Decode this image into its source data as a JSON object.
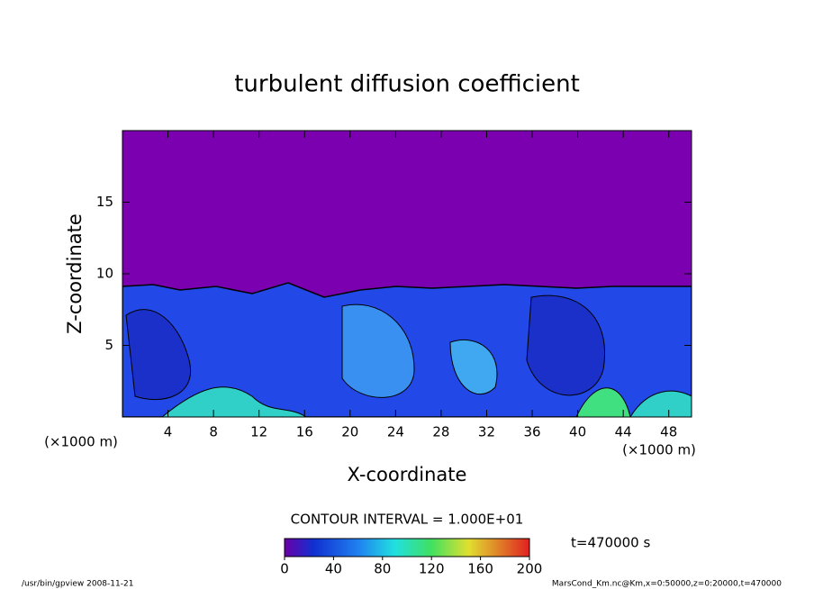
{
  "chart_data": {
    "type": "contour",
    "title": "turbulent diffusion coefficient",
    "x_label": "X-coordinate",
    "y_label": "Z-coordinate",
    "x_unit": "(×1000 m)",
    "y_unit": "(×1000 m)",
    "xlim": [
      0,
      50
    ],
    "xticks": [
      4,
      8,
      12,
      16,
      20,
      24,
      28,
      32,
      36,
      40,
      44,
      48
    ],
    "ylim": [
      0,
      20
    ],
    "yticks": [
      5,
      10,
      15
    ],
    "contour_interval": "CONTOUR INTERVAL = 1.000E+01",
    "colorbar_lim": [
      0,
      200
    ],
    "colorbar_ticks": [
      0,
      40,
      80,
      120,
      160,
      200
    ],
    "time_label": "t=470000 s",
    "footer_left": "/usr/bin/gpview   2008-11-21",
    "footer_right": "MarsCond_Km.nc@Km,x=0:50000,z=0:20000,t=470000"
  }
}
